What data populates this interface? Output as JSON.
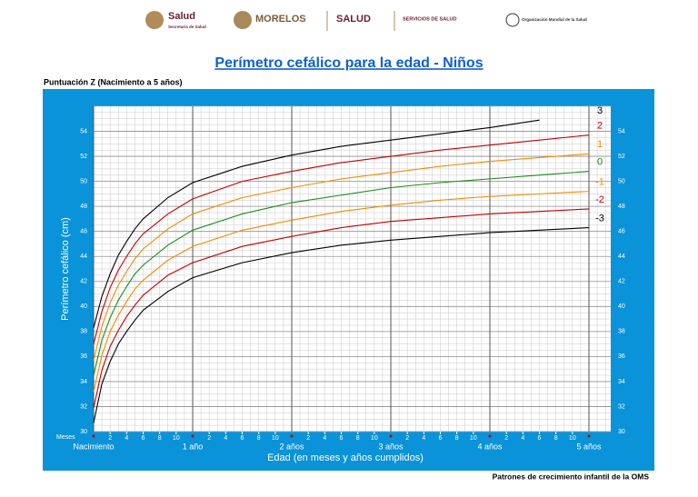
{
  "header": {
    "logos": [
      "Salud",
      "Secretaría de Salud",
      "MORELOS",
      "SALUD",
      "SERVICIOS DE SALUD",
      "Organización Mundial de la Salud"
    ]
  },
  "chart_data": {
    "type": "line",
    "title": "Perímetro cefálico para la edad - Niños",
    "subtitle": "Puntuación Z (Nacimiento a 5 años)",
    "y_label": "Perímetro cefálico (cm)",
    "x_label": "Edad (en meses y años cumplidos)",
    "x_unit_label": "Meses",
    "source": "Patrones de crecimiento infantil de la OMS",
    "x": [
      0,
      1,
      2,
      3,
      4,
      5,
      6,
      9,
      12,
      18,
      24,
      30,
      36,
      42,
      48,
      54,
      60
    ],
    "series": [
      {
        "name": "3",
        "color": "#000000",
        "values": [
          38.3,
          40.8,
          42.6,
          44.1,
          45.2,
          46.2,
          47.0,
          48.7,
          49.9,
          51.2,
          52.1,
          52.8,
          53.3,
          53.8,
          54.3,
          54.9,
          null
        ]
      },
      {
        "name": "2",
        "color": "#c00000",
        "values": [
          37.0,
          39.6,
          41.5,
          42.9,
          44.0,
          45.0,
          45.8,
          47.4,
          48.6,
          50.0,
          50.8,
          51.5,
          52.0,
          52.5,
          52.9,
          53.3,
          53.7
        ]
      },
      {
        "name": "1",
        "color": "#f08c00",
        "values": [
          35.7,
          38.4,
          40.3,
          41.7,
          42.8,
          43.8,
          44.6,
          46.2,
          47.4,
          48.7,
          49.5,
          50.2,
          50.7,
          51.2,
          51.6,
          51.9,
          52.2
        ]
      },
      {
        "name": "0",
        "color": "#1a8a1a",
        "values": [
          34.5,
          37.3,
          39.1,
          40.5,
          41.6,
          42.6,
          43.3,
          44.9,
          46.1,
          47.4,
          48.3,
          48.9,
          49.5,
          49.9,
          50.2,
          50.5,
          50.8
        ]
      },
      {
        "name": "-1",
        "color": "#f08c00",
        "values": [
          33.2,
          36.1,
          38.0,
          39.3,
          40.4,
          41.4,
          42.1,
          43.7,
          44.8,
          46.1,
          46.9,
          47.6,
          48.1,
          48.5,
          48.8,
          49.0,
          49.2
        ]
      },
      {
        "name": "-2",
        "color": "#c00000",
        "values": [
          31.9,
          34.9,
          36.8,
          38.1,
          39.2,
          40.1,
          40.9,
          42.5,
          43.5,
          44.8,
          45.6,
          46.3,
          46.8,
          47.1,
          47.4,
          47.6,
          47.8
        ]
      },
      {
        "name": "-3",
        "color": "#000000",
        "values": [
          30.7,
          33.8,
          35.6,
          37.0,
          38.0,
          38.9,
          39.7,
          41.2,
          42.3,
          43.5,
          44.3,
          44.9,
          45.3,
          45.6,
          45.9,
          46.1,
          46.3
        ]
      }
    ],
    "xlim": [
      0,
      60
    ],
    "ylim": [
      30,
      56
    ],
    "xticks": [
      {
        "value": 0,
        "label": "Nacimiento"
      },
      {
        "value": 12,
        "label": "1 año"
      },
      {
        "value": 24,
        "label": "2 años"
      },
      {
        "value": 36,
        "label": "3 años"
      },
      {
        "value": 48,
        "label": "4 años"
      },
      {
        "value": 60,
        "label": "5 años"
      }
    ],
    "xminor_ticks": [
      {
        "value": 2,
        "label": "2"
      },
      {
        "value": 4,
        "label": "4"
      },
      {
        "value": 6,
        "label": "6"
      },
      {
        "value": 8,
        "label": "8"
      },
      {
        "value": 10,
        "label": "10"
      },
      {
        "value": 14,
        "label": "2"
      },
      {
        "value": 16,
        "label": "4"
      },
      {
        "value": 18,
        "label": "6"
      },
      {
        "value": 20,
        "label": "8"
      },
      {
        "value": 22,
        "label": "10"
      },
      {
        "value": 26,
        "label": "2"
      },
      {
        "value": 28,
        "label": "4"
      },
      {
        "value": 30,
        "label": "6"
      },
      {
        "value": 32,
        "label": "8"
      },
      {
        "value": 34,
        "label": "10"
      },
      {
        "value": 38,
        "label": "2"
      },
      {
        "value": 40,
        "label": "4"
      },
      {
        "value": 42,
        "label": "6"
      },
      {
        "value": 44,
        "label": "8"
      },
      {
        "value": 46,
        "label": "10"
      },
      {
        "value": 50,
        "label": "2"
      },
      {
        "value": 52,
        "label": "4"
      },
      {
        "value": 54,
        "label": "6"
      },
      {
        "value": 56,
        "label": "8"
      },
      {
        "value": 58,
        "label": "10"
      }
    ],
    "yticks": [
      30,
      32,
      34,
      36,
      38,
      40,
      42,
      44,
      46,
      48,
      50,
      52,
      54
    ],
    "grid": true
  }
}
